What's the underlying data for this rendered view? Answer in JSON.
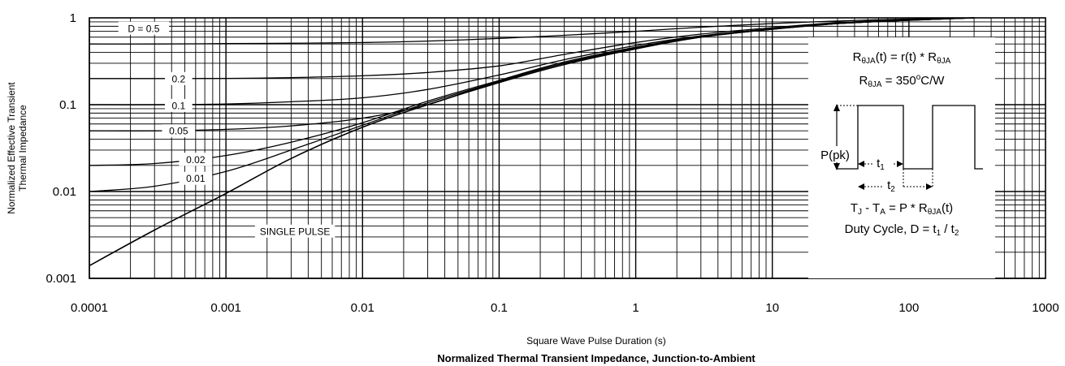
{
  "chart_data": {
    "type": "line",
    "title": "Normalized Thermal Transient Impedance, Junction-to-Ambient",
    "xlabel": "Square Wave Pulse Duration (s)",
    "ylabel": [
      "Normalized Effective Transient",
      "Thermal Impedance"
    ],
    "x_scale": "log",
    "y_scale": "log",
    "xlim": [
      0.0001,
      1000
    ],
    "ylim": [
      0.001,
      1
    ],
    "x_ticks": [
      {
        "value": 0.0001,
        "label": "0.0001"
      },
      {
        "value": 0.001,
        "label": "0.001"
      },
      {
        "value": 0.01,
        "label": "0.01"
      },
      {
        "value": 0.1,
        "label": "0.1"
      },
      {
        "value": 1,
        "label": "1"
      },
      {
        "value": 10,
        "label": "10"
      },
      {
        "value": 100,
        "label": "100"
      },
      {
        "value": 1000,
        "label": "1000"
      }
    ],
    "y_ticks": [
      {
        "value": 0.001,
        "label": "0.001"
      },
      {
        "value": 0.01,
        "label": "0.01"
      },
      {
        "value": 0.1,
        "label": "0.1"
      },
      {
        "value": 1,
        "label": "1"
      }
    ],
    "grid": true,
    "series": [
      {
        "name": "D = 0.5",
        "label_at": [
          0.00025,
          0.76
        ],
        "x": [
          0.0001,
          0.0003,
          0.001,
          0.003,
          0.01,
          0.03,
          0.1,
          0.3,
          1,
          3,
          10,
          30,
          100,
          300
        ],
        "y": [
          0.5,
          0.5,
          0.505,
          0.51,
          0.52,
          0.54,
          0.58,
          0.63,
          0.7,
          0.78,
          0.86,
          0.92,
          0.97,
          1.0
        ]
      },
      {
        "name": "0.2",
        "label_at": [
          0.00045,
          0.2
        ],
        "x": [
          0.0001,
          0.0003,
          0.001,
          0.003,
          0.01,
          0.03,
          0.1,
          0.3,
          1,
          3,
          10,
          30,
          100,
          300
        ],
        "y": [
          0.2,
          0.2,
          0.201,
          0.205,
          0.215,
          0.235,
          0.28,
          0.38,
          0.52,
          0.65,
          0.77,
          0.88,
          0.95,
          1.0
        ]
      },
      {
        "name": "0.1",
        "label_at": [
          0.00045,
          0.098
        ],
        "x": [
          0.0001,
          0.0003,
          0.001,
          0.003,
          0.01,
          0.03,
          0.1,
          0.3,
          1,
          3,
          10,
          30,
          100,
          300
        ],
        "y": [
          0.1,
          0.1,
          0.102,
          0.108,
          0.12,
          0.15,
          0.22,
          0.33,
          0.48,
          0.62,
          0.75,
          0.86,
          0.94,
          1.0
        ]
      },
      {
        "name": "0.05",
        "label_at": [
          0.00045,
          0.05
        ],
        "x": [
          0.0001,
          0.0003,
          0.001,
          0.003,
          0.01,
          0.03,
          0.1,
          0.3,
          1,
          3,
          10,
          30,
          100,
          300
        ],
        "y": [
          0.05,
          0.05,
          0.052,
          0.057,
          0.07,
          0.1,
          0.19,
          0.31,
          0.46,
          0.61,
          0.74,
          0.86,
          0.94,
          1.0
        ]
      },
      {
        "name": "0.02",
        "label_at": [
          0.0006,
          0.0235
        ],
        "x": [
          0.0001,
          0.0003,
          0.001,
          0.003,
          0.01,
          0.03,
          0.1,
          0.3,
          1,
          3,
          10,
          30,
          100,
          300
        ],
        "y": [
          0.02,
          0.021,
          0.026,
          0.037,
          0.062,
          0.11,
          0.19,
          0.3,
          0.45,
          0.6,
          0.74,
          0.86,
          0.94,
          1.0
        ]
      },
      {
        "name": "0.01",
        "label_at": [
          0.0006,
          0.0142
        ],
        "x": [
          0.0001,
          0.0003,
          0.001,
          0.003,
          0.01,
          0.03,
          0.1,
          0.3,
          1,
          3,
          10,
          30,
          100,
          300
        ],
        "y": [
          0.01,
          0.0115,
          0.017,
          0.03,
          0.058,
          0.105,
          0.185,
          0.3,
          0.45,
          0.6,
          0.74,
          0.86,
          0.94,
          1.0
        ]
      },
      {
        "name": "SINGLE PULSE",
        "label_at": [
          0.0032,
          0.0035
        ],
        "x": [
          0.0001,
          0.0003,
          0.001,
          0.003,
          0.01,
          0.03,
          0.1,
          0.3,
          1,
          3,
          10,
          30,
          100,
          300
        ],
        "y": [
          0.0014,
          0.0036,
          0.0095,
          0.024,
          0.055,
          0.1,
          0.18,
          0.29,
          0.44,
          0.6,
          0.74,
          0.86,
          0.94,
          1.0
        ]
      }
    ],
    "inset": {
      "formula1": [
        "R",
        "θJA",
        "(t) = r(t) * R",
        "θJA",
        ""
      ],
      "formula2": [
        "R",
        "θJA",
        " = 350",
        "o",
        "C/W"
      ],
      "ppk_label": "P(pk)",
      "t1_label": [
        "t",
        "1"
      ],
      "t2_label": [
        "t",
        "2"
      ],
      "formula3": [
        "T",
        "J",
        " - T",
        "A",
        " = P * R",
        "θJA",
        "(t)"
      ],
      "formula4": [
        "Duty Cycle, D = t",
        "1",
        " / t",
        "2"
      ]
    }
  }
}
